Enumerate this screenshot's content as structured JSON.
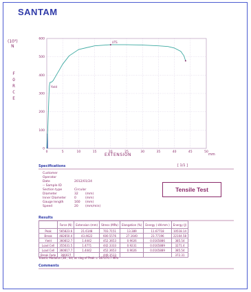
{
  "header": {
    "brand": "SANTAM"
  },
  "chart_data": {
    "type": "line",
    "unit_label": [
      "(10³)",
      "N"
    ],
    "ylabel": "F O R C E",
    "xlabel": "EXTENSION",
    "x_unit": "mm",
    "xlim": [
      0,
      50
    ],
    "ylim": [
      0,
      600
    ],
    "x_ticks": [
      "0",
      "5",
      "10",
      "15",
      "20",
      "25",
      "30",
      "35",
      "40",
      "45",
      "50"
    ],
    "y_ticks": [
      "0",
      "100",
      "200",
      "300",
      "400",
      "500",
      "600"
    ],
    "series": [
      {
        "x": [
          0,
          0.3,
          0.6,
          0.8,
          1,
          1.5,
          2,
          3,
          4,
          5,
          7,
          10,
          15,
          20,
          25,
          30,
          35,
          38,
          40,
          42,
          43,
          43.5
        ],
        "y": [
          0,
          100,
          250,
          340,
          360,
          362,
          370,
          400,
          430,
          460,
          505,
          540,
          560,
          566,
          566,
          564,
          560,
          556,
          548,
          530,
          505,
          478
        ]
      }
    ],
    "annotations": [
      "Yield",
      "UTS"
    ]
  },
  "specifications": {
    "heading": "Specifications",
    "page": "[ 1/1 ]",
    "fields": [
      {
        "label": "Customer",
        "value": ""
      },
      {
        "label": "Operator",
        "value": ""
      },
      {
        "label": "Date",
        "value": "2012/01/24"
      },
      {
        "label": "-- Sample ID",
        "value": ""
      },
      {
        "label": "Section type",
        "value": "Circular"
      },
      {
        "label": "Diameter",
        "value": "32"
      },
      {
        "label": "Inner Diameter",
        "value": "0"
      },
      {
        "label": "Gauge length",
        "value": "160"
      },
      {
        "label": "Speed",
        "value": "20"
      }
    ],
    "units": [
      "",
      "",
      "",
      "",
      "",
      "(mm)",
      "(mm)",
      "(mm)",
      "(mm/min)"
    ],
    "title": "Tensile Test"
  },
  "results": {
    "heading": "Results",
    "columns": [
      "",
      "Force (N)",
      "Extension (mm)",
      "Stress (MPa)",
      "Elongation (%)",
      "Energy ( kN·mm )",
      "Energy (J)"
    ],
    "rows": [
      [
        "Peak",
        "565823.6",
        "21.6148",
        "703.7151",
        "13.389",
        "11.67718",
        "10518.14"
      ],
      [
        "Break",
        "482850.4",
        "43.4622",
        "600.5576",
        "27.1640",
        "23.77196",
        "22104.58"
      ],
      [
        "Yield",
        "360812.7",
        "1.4442",
        "452.3653",
        "0.9026",
        "0.0165886",
        "385.54"
      ],
      [
        "Load Cell",
        "355631.5",
        "1.4771",
        "442.3333",
        "0.9231",
        "0.0165889",
        "3271.4"
      ],
      [
        "Load Cell",
        "360817.7",
        "1.4442",
        "452.3653",
        "0.9026",
        "0.0165889",
        "385.54"
      ],
      [
        "Break Fade",
        "366027",
        "",
        "449.3533",
        "",
        "",
        "372.31"
      ]
    ],
    "footnote": "Elastic Modulus (38 , 44) as slog of Peak = 187070.7 MPa"
  },
  "comments": {
    "heading": "Comments"
  },
  "colors": {
    "accent": "#2f3aa8",
    "text": "#8a2a6a",
    "curve": "#3aa8a0"
  }
}
